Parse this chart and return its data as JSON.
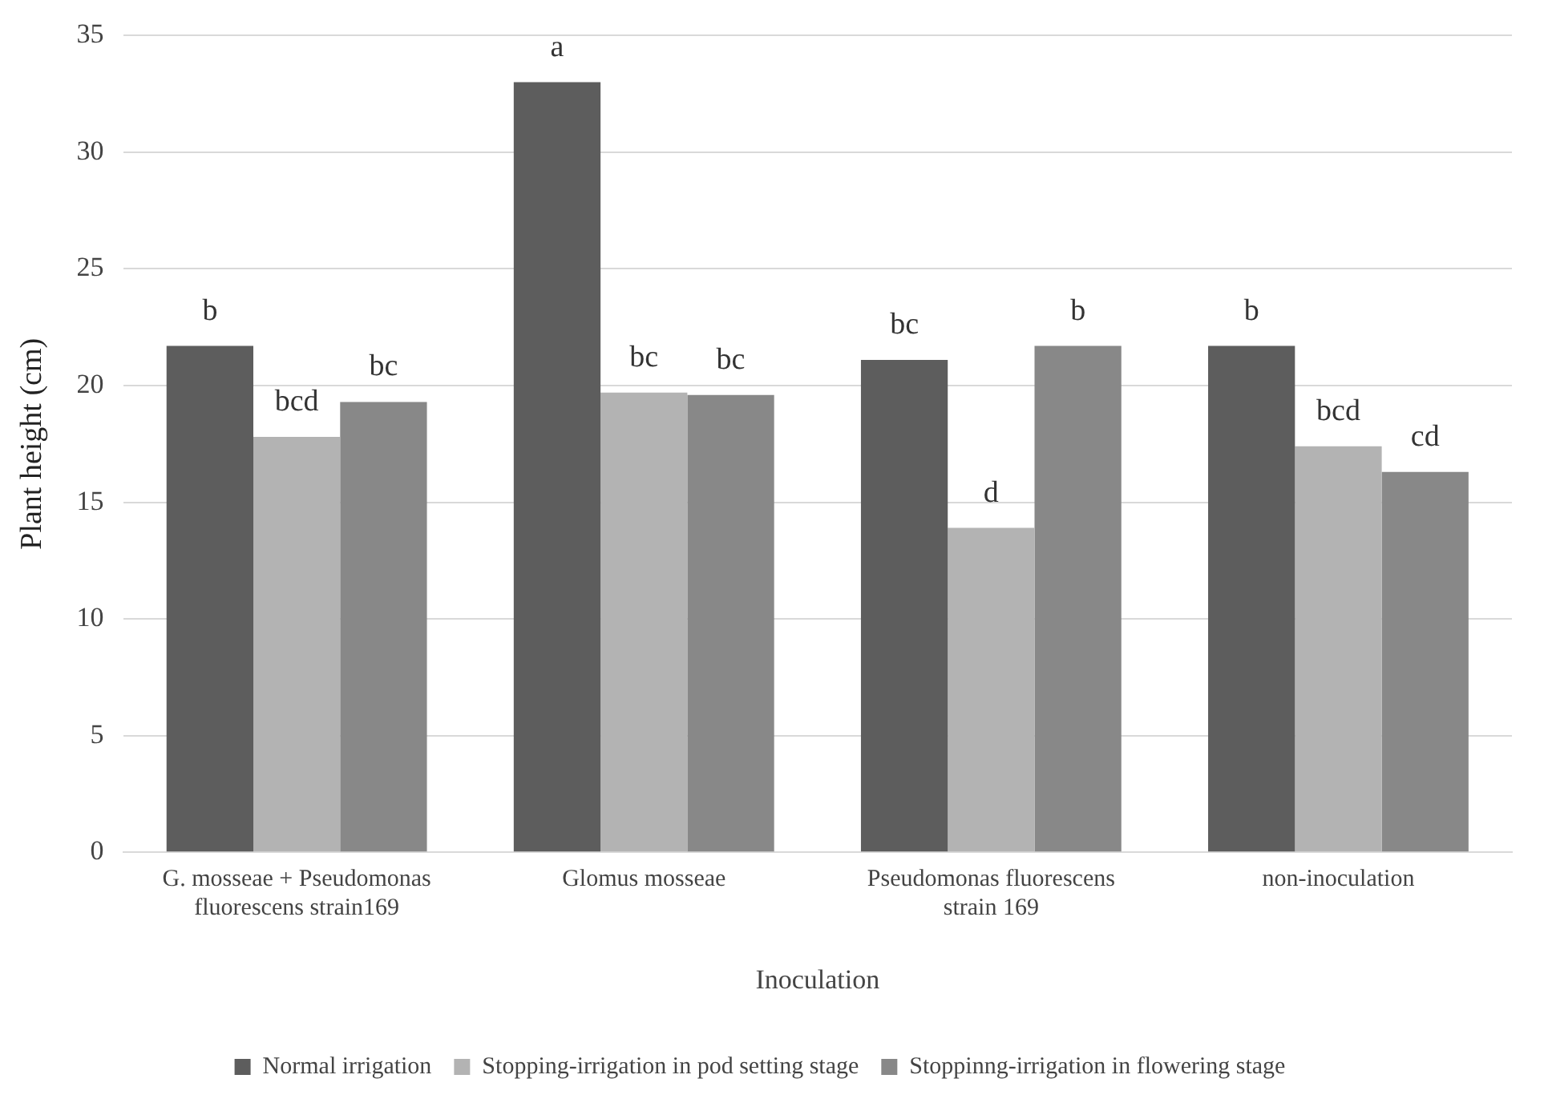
{
  "chart_data": {
    "type": "bar",
    "xlabel": "Inoculation",
    "ylabel": "Plant height (cm)",
    "categories": [
      "G. mosseae + Pseudomonas fluorescens strain169",
      "Glomus mosseae",
      "Pseudomonas fluorescens strain 169",
      "non-inoculation"
    ],
    "series": [
      {
        "name": "Normal irrigation",
        "color": "#5d5d5d",
        "values": [
          21.7,
          33.0,
          21.1,
          21.7
        ],
        "value_labels": [
          "b",
          "a",
          "bc",
          "b"
        ]
      },
      {
        "name": "Stopping-irrigation in pod setting stage",
        "color": "#b3b3b3",
        "values": [
          17.8,
          19.7,
          13.9,
          17.4
        ],
        "value_labels": [
          "bcd",
          "bc",
          "d",
          "bcd"
        ]
      },
      {
        "name": "Stoppinng-irrigation in flowering stage",
        "color": "#888888",
        "values": [
          19.3,
          19.6,
          21.7,
          16.3
        ],
        "value_labels": [
          "bc",
          "bc",
          "b",
          "cd"
        ]
      }
    ],
    "ylim": [
      0,
      35
    ],
    "yticks": [
      0,
      5,
      10,
      15,
      20,
      25,
      30,
      35
    ],
    "grid": "y",
    "legend": "bottom"
  }
}
